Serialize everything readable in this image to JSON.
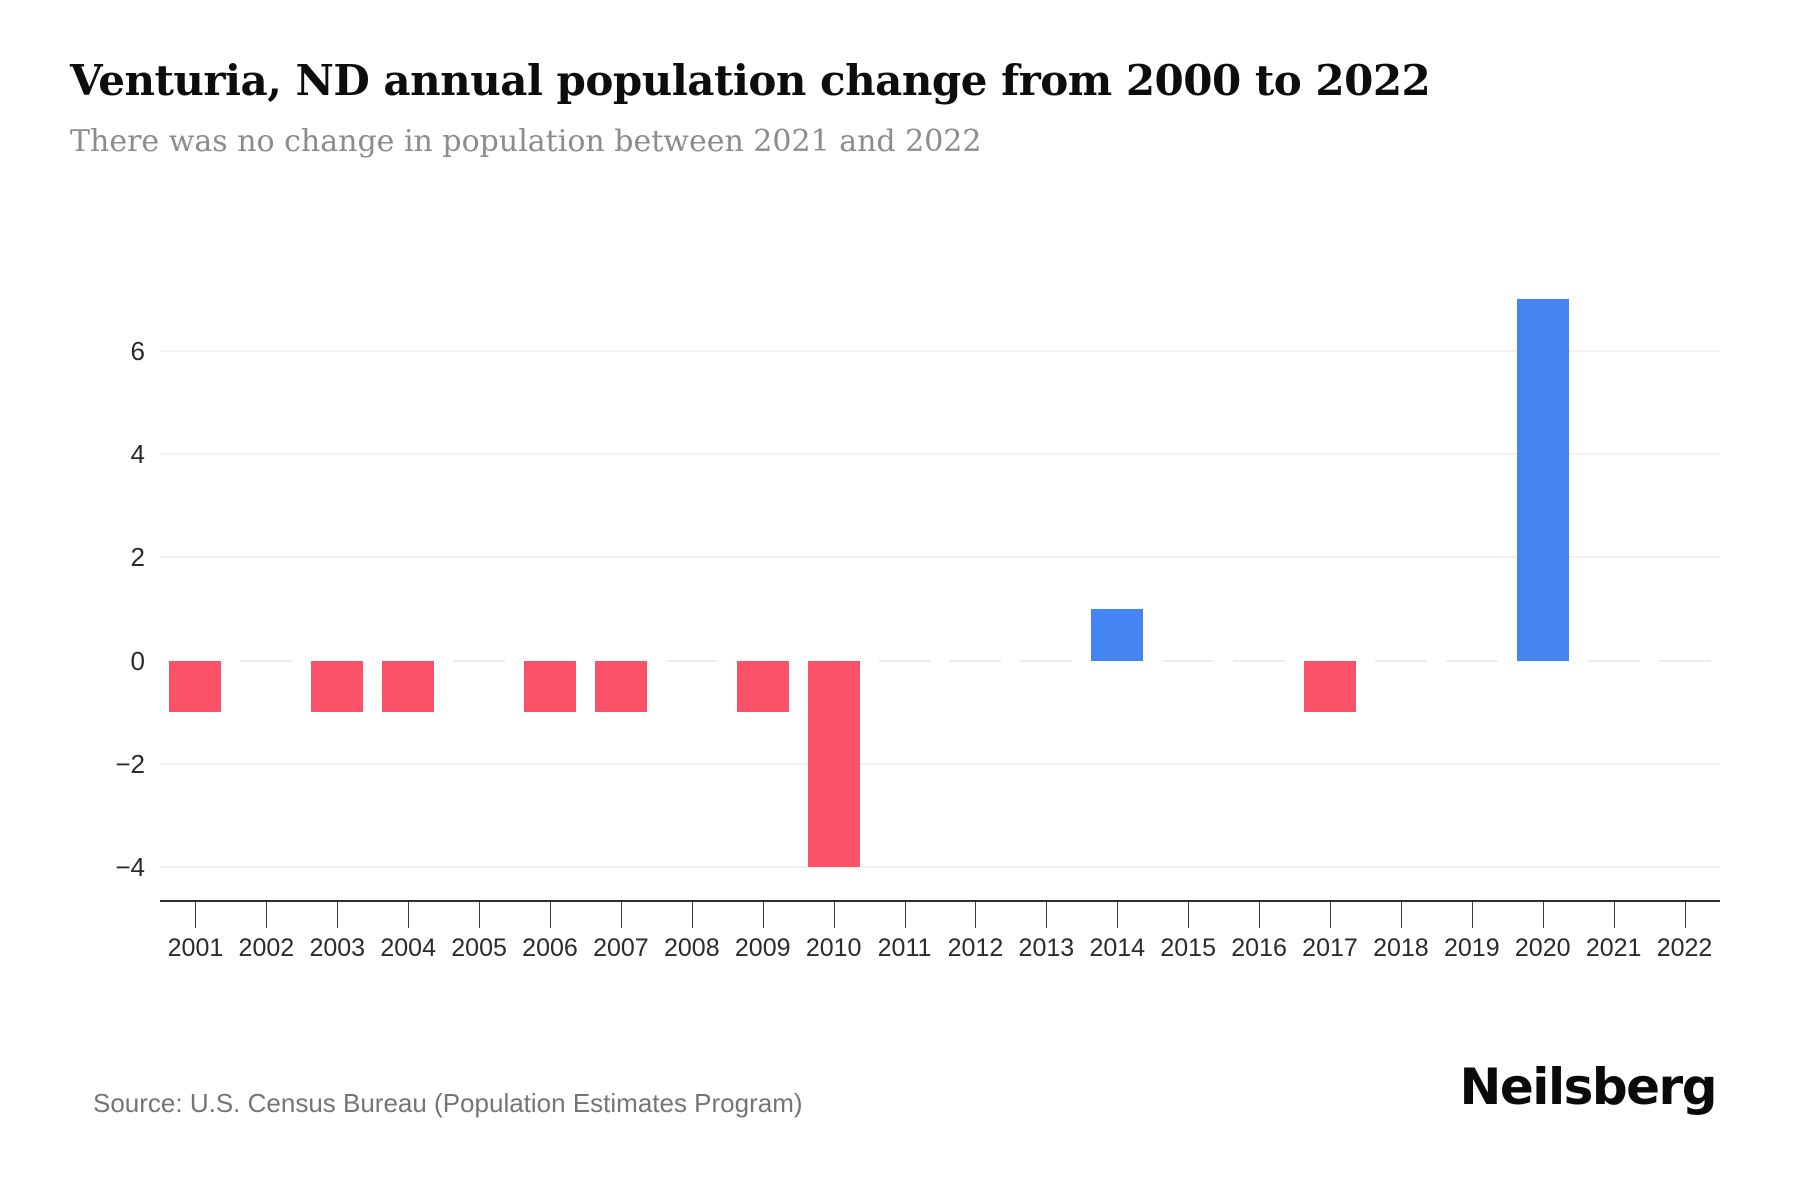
{
  "header": {
    "title": "Venturia, ND annual population change from 2000 to 2022",
    "subtitle": "There was no change in population between 2021 and 2022"
  },
  "chart_data": {
    "type": "bar",
    "title": "Venturia, ND annual population change from 2000 to 2022",
    "series_name": "Annual population change",
    "categories": [
      "2001",
      "2002",
      "2003",
      "2004",
      "2005",
      "2006",
      "2007",
      "2008",
      "2009",
      "2010",
      "2011",
      "2012",
      "2013",
      "2014",
      "2015",
      "2016",
      "2017",
      "2018",
      "2019",
      "2020",
      "2021",
      "2022"
    ],
    "values": [
      -1,
      0,
      -1,
      -1,
      0,
      -1,
      -1,
      0,
      -1,
      -4,
      0,
      0,
      0,
      1,
      0,
      0,
      -1,
      0,
      0,
      7,
      0,
      0
    ],
    "xlabel": "",
    "ylabel": "",
    "yticks": [
      6,
      4,
      2,
      0,
      -2,
      -4
    ],
    "ylim": [
      -4.65,
      7.95
    ],
    "grid": "horizontal",
    "legend": "none",
    "colors": {
      "positive": "#4484F3",
      "negative": "#FB5169",
      "gridline": "#F2F2F2",
      "zero_mark": "#ECECEC",
      "axis": "#2F2F2F"
    }
  },
  "footer": {
    "source": "Source: U.S. Census Bureau (Population Estimates Program)",
    "brand": "Neilsberg"
  }
}
